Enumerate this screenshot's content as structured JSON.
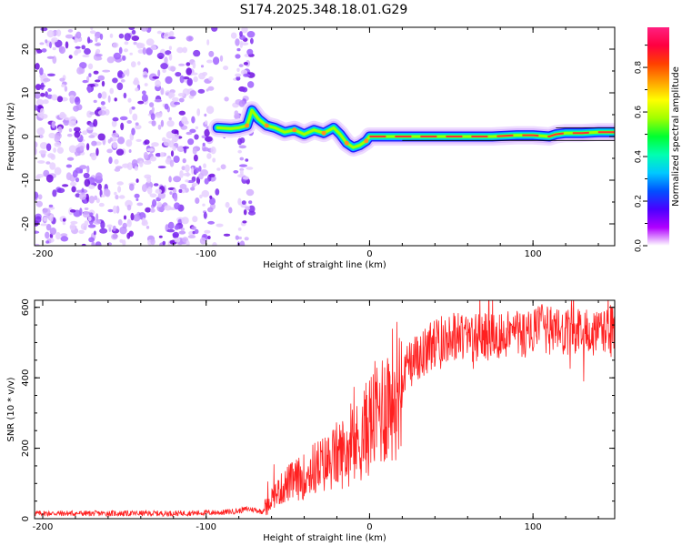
{
  "page": {
    "title": "S174.2025.348.18.01.G29"
  },
  "chart_data": [
    {
      "type": "heatmap",
      "title": "S174.2025.348.18.01.G29",
      "xlabel": "Height of straight line (km)",
      "ylabel": "Frequency (Hz)",
      "xlim": [
        -205,
        150
      ],
      "ylim": [
        -25,
        25
      ],
      "xticks": [
        -200,
        -100,
        0,
        100
      ],
      "yticks": [
        -20,
        -10,
        0,
        10,
        20
      ],
      "noise_region_x": [
        -205,
        -72
      ],
      "signal_trace": {
        "x": [
          -93,
          -85,
          -80,
          -75,
          -72,
          -68,
          -63,
          -58,
          -52,
          -46,
          -40,
          -34,
          -28,
          -22,
          -18,
          -14,
          -10,
          -6,
          -2,
          0,
          10,
          20,
          30,
          45,
          60,
          75,
          90,
          100,
          110,
          114,
          120,
          130,
          140,
          150
        ],
        "y": [
          2,
          1.8,
          2,
          2.5,
          6,
          4,
          2.5,
          2,
          1,
          1.5,
          0.5,
          1.5,
          0.8,
          2,
          0.5,
          -1.5,
          -2.5,
          -2,
          -1,
          0,
          0,
          0,
          0,
          0,
          0,
          0,
          0.3,
          0.3,
          0,
          0.5,
          0.8,
          0.8,
          1,
          1
        ]
      },
      "colorbar": {
        "label": "Normalized spectral amplitude",
        "ticks": [
          "0.0",
          "0.2",
          "0.4",
          "0.6",
          "0.8"
        ],
        "colors": [
          "#ffffff",
          "#b000ff",
          "#4a00ff",
          "#0050ff",
          "#00c8ff",
          "#00ffb0",
          "#00ff30",
          "#a0ff00",
          "#ffff00",
          "#ffa000",
          "#ff4000",
          "#ff0040",
          "#ff2080"
        ]
      }
    },
    {
      "type": "line",
      "xlabel": "Height of straight line (km)",
      "ylabel": "SNR (10 * v/v)",
      "xlim": [
        -205,
        150
      ],
      "ylim": [
        0,
        620
      ],
      "xticks": [
        -200,
        -100,
        0,
        100
      ],
      "yticks": [
        0,
        200,
        400,
        600
      ],
      "color": "#ff2020",
      "series": [
        {
          "name": "SNR",
          "x": [
            -205,
            -180,
            -150,
            -120,
            -90,
            -80,
            -75,
            -70,
            -66,
            -63,
            -60,
            -55,
            -50,
            -45,
            -40,
            -35,
            -30,
            -25,
            -20,
            -15,
            -10,
            -5,
            0,
            5,
            10,
            15,
            20,
            25,
            30,
            35,
            40,
            45,
            50,
            55,
            60,
            65,
            70,
            75,
            80,
            85,
            90,
            95,
            100,
            105,
            110,
            115,
            120,
            125,
            130,
            135,
            140,
            145,
            150
          ],
          "y": [
            15,
            15,
            15,
            15,
            18,
            22,
            28,
            25,
            20,
            35,
            60,
            80,
            100,
            110,
            120,
            140,
            150,
            160,
            180,
            190,
            200,
            230,
            270,
            300,
            330,
            360,
            400,
            440,
            460,
            480,
            500,
            510,
            520,
            520,
            510,
            515,
            520,
            515,
            520,
            530,
            530,
            520,
            530,
            540,
            535,
            530,
            520,
            530,
            540,
            530,
            520,
            535,
            540
          ]
        }
      ]
    }
  ]
}
